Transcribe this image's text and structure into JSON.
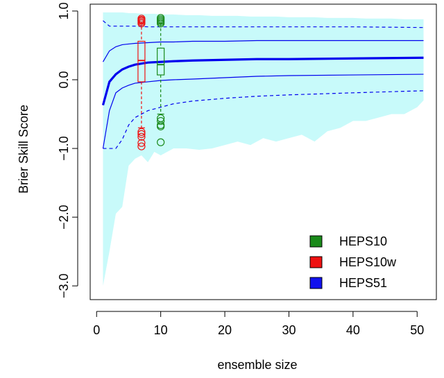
{
  "chart_data": {
    "type": "line",
    "title": "",
    "xlabel": "ensemble size",
    "ylabel": "Brier Skill Score",
    "xlim": [
      -1,
      53
    ],
    "ylim": [
      -3.2,
      1.1
    ],
    "xticks": [
      0,
      10,
      20,
      30,
      40,
      50
    ],
    "xtick_labels": [
      "0",
      "10",
      "20",
      "30",
      "40",
      "50"
    ],
    "yticks": [
      -3.0,
      -2.0,
      -1.0,
      0.0,
      1.0
    ],
    "ytick_labels": [
      "−3.0",
      "−2.0",
      "−1.0",
      "0.0",
      "1.0"
    ],
    "grid": false,
    "legend_position": "bottom-right",
    "legend": [
      {
        "label": "HEPS10",
        "color": "#1a8a1a"
      },
      {
        "label": "HEPS10w",
        "color": "#ee1111"
      },
      {
        "label": "HEPS51",
        "color": "#1111ee"
      }
    ],
    "envelope": {
      "color": "#c8fafa",
      "x": [
        1,
        2,
        3,
        4,
        5,
        6,
        7,
        8,
        9,
        10,
        11,
        12,
        14,
        16,
        18,
        20,
        22,
        24,
        26,
        28,
        30,
        32,
        34,
        36,
        38,
        40,
        42,
        44,
        46,
        48,
        50,
        51
      ],
      "upper": [
        0.98,
        0.98,
        0.98,
        0.98,
        0.97,
        0.97,
        0.96,
        0.96,
        0.96,
        0.95,
        0.95,
        0.95,
        0.94,
        0.94,
        0.93,
        0.93,
        0.93,
        0.92,
        0.92,
        0.92,
        0.91,
        0.91,
        0.91,
        0.9,
        0.9,
        0.9,
        0.89,
        0.89,
        0.89,
        0.88,
        0.88,
        0.88
      ],
      "lower": [
        -3.0,
        -2.5,
        -1.95,
        -1.85,
        -1.25,
        -1.15,
        -1.1,
        -1.2,
        -1.05,
        -1.1,
        -1.05,
        -1.0,
        -1.0,
        -1.02,
        -1.0,
        -0.95,
        -0.9,
        -0.95,
        -0.85,
        -0.9,
        -0.85,
        -0.8,
        -0.9,
        -0.75,
        -0.7,
        -0.6,
        -0.6,
        -0.55,
        -0.5,
        -0.5,
        -0.4,
        -0.3
      ]
    },
    "series": [
      {
        "color": "#0000ee",
        "style": "thick",
        "x": [
          1,
          2,
          3,
          4,
          5,
          6,
          8,
          10,
          12,
          15,
          20,
          25,
          30,
          40,
          51
        ],
        "y": [
          -0.37,
          -0.03,
          0.08,
          0.15,
          0.19,
          0.22,
          0.25,
          0.26,
          0.27,
          0.28,
          0.29,
          0.3,
          0.3,
          0.31,
          0.32
        ]
      },
      {
        "color": "#0000ee",
        "style": "solid",
        "x": [
          1,
          2,
          3,
          4,
          5,
          6,
          8,
          10,
          12,
          15,
          20,
          25,
          30,
          40,
          51
        ],
        "y": [
          0.26,
          0.42,
          0.48,
          0.51,
          0.52,
          0.53,
          0.54,
          0.55,
          0.55,
          0.56,
          0.56,
          0.57,
          0.57,
          0.57,
          0.57
        ]
      },
      {
        "color": "#0000ee",
        "style": "solid",
        "x": [
          1,
          2,
          3,
          4,
          5,
          6,
          8,
          10,
          12,
          15,
          20,
          25,
          30,
          40,
          51
        ],
        "y": [
          -1.0,
          -0.45,
          -0.19,
          -0.12,
          -0.08,
          -0.05,
          -0.03,
          -0.01,
          0.0,
          0.01,
          0.03,
          0.05,
          0.06,
          0.07,
          0.08
        ]
      },
      {
        "color": "#0000ee",
        "style": "dashed",
        "x": [
          1,
          2,
          3,
          4,
          5,
          6,
          8,
          10,
          12,
          15,
          20,
          25,
          30,
          40,
          51
        ],
        "y": [
          0.86,
          0.78,
          0.78,
          0.78,
          0.78,
          0.78,
          0.77,
          0.77,
          0.77,
          0.77,
          0.77,
          0.77,
          0.77,
          0.77,
          0.76
        ]
      },
      {
        "color": "#0000ee",
        "style": "dashed",
        "x": [
          1,
          2,
          3,
          4,
          5,
          6,
          8,
          10,
          12,
          15,
          20,
          25,
          30,
          40,
          51
        ],
        "y": [
          -1.0,
          -1.0,
          -1.0,
          -0.87,
          -0.66,
          -0.55,
          -0.45,
          -0.4,
          -0.35,
          -0.31,
          -0.27,
          -0.24,
          -0.22,
          -0.19,
          -0.16
        ]
      }
    ],
    "boxplots": [
      {
        "x": 7,
        "color": "#ee1111",
        "whisker_low": -0.7,
        "q1": -0.03,
        "median": 0.28,
        "q3": 0.56,
        "whisker_high": 0.84,
        "outliers": [
          0.89,
          0.87,
          0.86,
          0.84,
          0.82,
          -0.76,
          -0.79,
          -0.83,
          -0.92,
          -0.97
        ]
      },
      {
        "x": 10,
        "color": "#1a8a1a",
        "whisker_low": -0.5,
        "q1": 0.07,
        "median": 0.22,
        "q3": 0.46,
        "whisker_high": 0.82,
        "outliers": [
          0.9,
          0.88,
          0.86,
          0.84,
          0.82,
          -0.56,
          -0.6,
          -0.66,
          -0.68,
          -0.91
        ]
      }
    ]
  }
}
